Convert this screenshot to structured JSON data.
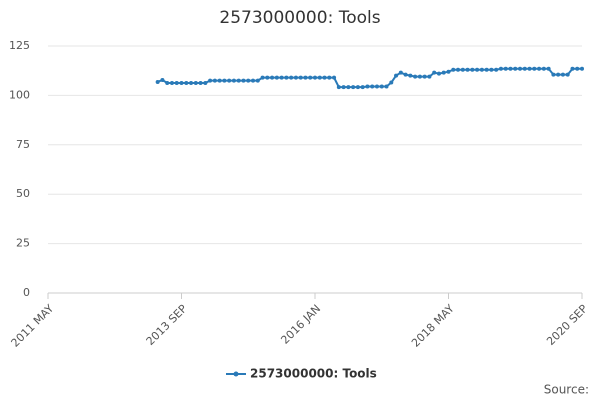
{
  "chart_data": {
    "type": "line",
    "title": "2573000000: Tools",
    "x": [
      "2013-04",
      "2013-05",
      "2013-06",
      "2013-07",
      "2013-08",
      "2013-09",
      "2013-10",
      "2013-11",
      "2013-12",
      "2014-01",
      "2014-02",
      "2014-03",
      "2014-04",
      "2014-05",
      "2014-06",
      "2014-07",
      "2014-08",
      "2014-09",
      "2014-10",
      "2014-11",
      "2014-12",
      "2015-01",
      "2015-02",
      "2015-03",
      "2015-04",
      "2015-05",
      "2015-06",
      "2015-07",
      "2015-08",
      "2015-09",
      "2015-10",
      "2015-11",
      "2015-12",
      "2016-01",
      "2016-02",
      "2016-03",
      "2016-04",
      "2016-05",
      "2016-06",
      "2016-07",
      "2016-08",
      "2016-09",
      "2016-10",
      "2016-11",
      "2016-12",
      "2017-01",
      "2017-02",
      "2017-03",
      "2017-04",
      "2017-05",
      "2017-06",
      "2017-07",
      "2017-08",
      "2017-09",
      "2017-10",
      "2017-11",
      "2017-12",
      "2018-01",
      "2018-02",
      "2018-03",
      "2018-04",
      "2018-05",
      "2018-06",
      "2018-07",
      "2018-08",
      "2018-09",
      "2018-10",
      "2018-11",
      "2018-12",
      "2019-01",
      "2019-02",
      "2019-03",
      "2019-04",
      "2019-05",
      "2019-06",
      "2019-07",
      "2019-08",
      "2019-09",
      "2019-10",
      "2019-11",
      "2019-12",
      "2020-01",
      "2020-02",
      "2020-03",
      "2020-04",
      "2020-05",
      "2020-06",
      "2020-07",
      "2020-08",
      "2020-09"
    ],
    "series": [
      {
        "name": "2573000000: Tools",
        "color": "#2a7ab8",
        "values": [
          106.8,
          107.8,
          106.3,
          106.3,
          106.3,
          106.3,
          106.3,
          106.3,
          106.3,
          106.3,
          106.3,
          107.5,
          107.5,
          107.5,
          107.5,
          107.5,
          107.5,
          107.5,
          107.5,
          107.5,
          107.5,
          107.5,
          109,
          109,
          109,
          109,
          109,
          109,
          109,
          109,
          109,
          109,
          109,
          109,
          109,
          109,
          109,
          109,
          104.2,
          104.2,
          104.2,
          104.2,
          104.2,
          104.2,
          104.5,
          104.5,
          104.5,
          104.5,
          104.5,
          106.5,
          110,
          111.5,
          110.5,
          110,
          109.5,
          109.5,
          109.5,
          109.5,
          111.5,
          111,
          111.5,
          112,
          113,
          113,
          113,
          113,
          113,
          113,
          113,
          113,
          113,
          113,
          113.5,
          113.5,
          113.5,
          113.5,
          113.5,
          113.5,
          113.5,
          113.5,
          113.5,
          113.5,
          113.5,
          110.5,
          110.5,
          110.5,
          110.5,
          113.5,
          113.5,
          113.5
        ]
      }
    ],
    "xlim": [
      "2011-05",
      "2020-09"
    ],
    "xticks": [
      {
        "value": "2011-05",
        "label": "2011 MAY"
      },
      {
        "value": "2013-09",
        "label": "2013 SEP"
      },
      {
        "value": "2016-01",
        "label": "2016 JAN"
      },
      {
        "value": "2018-05",
        "label": "2018 MAY"
      },
      {
        "value": "2020-09",
        "label": "2020 SEP"
      }
    ],
    "ylim": [
      0,
      125
    ],
    "yticks": [
      0,
      25,
      50,
      75,
      100,
      125
    ],
    "grid": true,
    "legend": "bottom",
    "source": "Source:"
  }
}
